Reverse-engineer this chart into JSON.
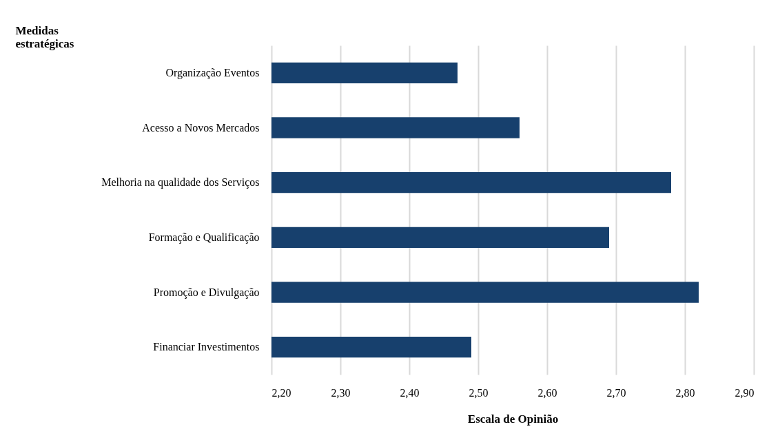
{
  "chart_data": {
    "type": "bar",
    "orientation": "horizontal",
    "ylabel": "Medidas estratégicas",
    "xlabel": "Escala de Opinião",
    "categories": [
      "Organização Eventos",
      "Acesso a Novos Mercados",
      "Melhoria na qualidade dos Serviços",
      "Formação e Qualificação",
      "Promoção e Divulgação",
      "Financiar Investimentos"
    ],
    "values": [
      2.47,
      2.56,
      2.78,
      2.69,
      2.82,
      2.49
    ],
    "color": "#17406d",
    "xlim": [
      2.2,
      2.9
    ],
    "xticks": [
      {
        "value": 2.2,
        "label": "2,20"
      },
      {
        "value": 2.3,
        "label": "2,30"
      },
      {
        "value": 2.4,
        "label": "2,40"
      },
      {
        "value": 2.5,
        "label": "2,50"
      },
      {
        "value": 2.6,
        "label": "2,60"
      },
      {
        "value": 2.7,
        "label": "2,70"
      },
      {
        "value": 2.8,
        "label": "2,80"
      },
      {
        "value": 2.9,
        "label": "2,90"
      }
    ],
    "grid": "x"
  }
}
